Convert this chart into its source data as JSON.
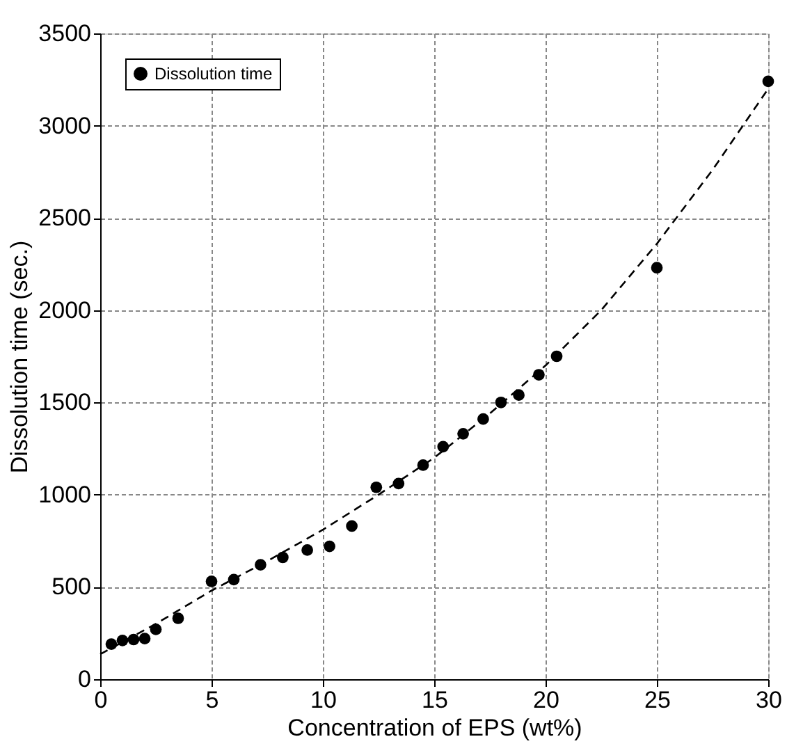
{
  "chart_data": {
    "type": "scatter",
    "xlabel": "Concentration of EPS (wt%)",
    "ylabel": "Dissolution time (sec.)",
    "xlim": [
      0,
      30
    ],
    "xticks": [
      0,
      5,
      10,
      15,
      20,
      25,
      30
    ],
    "ylim": [
      0,
      3500
    ],
    "yticks": [
      0,
      500,
      1000,
      1500,
      2000,
      2500,
      3000,
      3500
    ],
    "grid": true,
    "legend": "top left",
    "series": [
      {
        "name": "Dissolution time",
        "marker": "circle",
        "color": "#000000",
        "x": [
          0.5,
          1,
          1.5,
          2,
          2.5,
          3.5,
          5,
          6,
          7.2,
          8.2,
          9.3,
          10.3,
          11.3,
          12.4,
          13.4,
          14.5,
          15.4,
          16.3,
          17.2,
          18,
          18.8,
          19.7,
          20.5,
          25,
          30
        ],
        "values": [
          190,
          210,
          215,
          220,
          270,
          330,
          530,
          540,
          620,
          660,
          700,
          720,
          830,
          1040,
          1060,
          1160,
          1260,
          1330,
          1410,
          1500,
          1540,
          1650,
          1750,
          2230,
          3240
        ]
      },
      {
        "type": "line",
        "line_style": "dashed",
        "marker": "none",
        "color": "#000000",
        "x": [
          0,
          2.5,
          5,
          7.5,
          10,
          12.5,
          15,
          17.5,
          20,
          22.5,
          25,
          27.5,
          30
        ],
        "values": [
          135,
          300,
          480,
          640,
          810,
          1000,
          1200,
          1440,
          1700,
          2000,
          2360,
          2760,
          3200
        ]
      }
    ]
  }
}
